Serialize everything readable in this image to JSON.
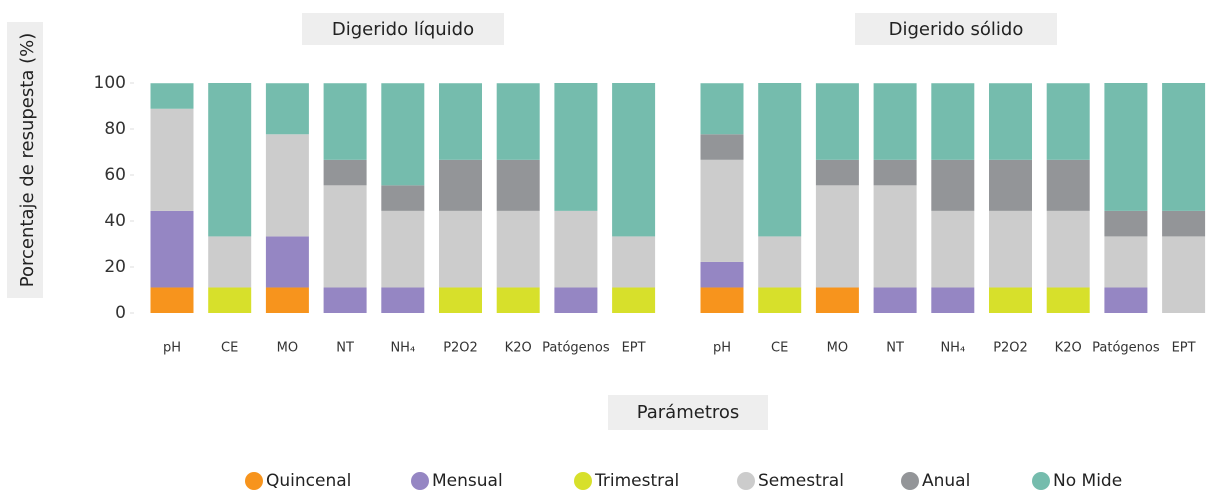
{
  "y_label": "Porcentaje de resupesta (%)",
  "x_label": "Parámetros",
  "chart_data": [
    {
      "type": "bar",
      "stacked": true,
      "title": "Digerido líquido",
      "categories": [
        "pH",
        "CE",
        "MO",
        "NT",
        "NH₄",
        "P2O2",
        "K2O",
        "Patógenos",
        "EPT"
      ],
      "series": [
        {
          "name": "Quincenal",
          "color": "#f7941d",
          "values": [
            11.1,
            0,
            11.1,
            0,
            0,
            0,
            0,
            0,
            0
          ]
        },
        {
          "name": "Mensual",
          "color": "#9586c3",
          "values": [
            33.3,
            0,
            22.2,
            11.1,
            11.1,
            0,
            0,
            11.1,
            0
          ]
        },
        {
          "name": "Trimestral",
          "color": "#d7e02b",
          "values": [
            0,
            11.1,
            0,
            0,
            0,
            11.1,
            11.1,
            0,
            11.1
          ]
        },
        {
          "name": "Semestral",
          "color": "#cccccc",
          "values": [
            44.4,
            22.2,
            44.4,
            44.4,
            33.3,
            33.3,
            33.3,
            33.3,
            22.2
          ]
        },
        {
          "name": "Anual",
          "color": "#939598",
          "values": [
            0,
            0,
            0,
            11.1,
            11.1,
            22.2,
            22.2,
            0,
            0
          ]
        },
        {
          "name": "No Mide",
          "color": "#75bcad",
          "values": [
            11.1,
            66.7,
            22.2,
            33.3,
            44.4,
            33.3,
            33.3,
            55.6,
            66.7
          ]
        }
      ],
      "ylim": [
        0,
        100
      ],
      "yticks": [
        0,
        20,
        40,
        60,
        80,
        100
      ]
    },
    {
      "type": "bar",
      "stacked": true,
      "title": "Digerido sólido",
      "categories": [
        "pH",
        "CE",
        "MO",
        "NT",
        "NH₄",
        "P2O2",
        "K2O",
        "Patógenos",
        "EPT"
      ],
      "series": [
        {
          "name": "Quincenal",
          "color": "#f7941d",
          "values": [
            11.1,
            0,
            11.1,
            0,
            0,
            0,
            0,
            0,
            0
          ]
        },
        {
          "name": "Mensual",
          "color": "#9586c3",
          "values": [
            11.1,
            0,
            0,
            11.1,
            11.1,
            0,
            0,
            11.1,
            0
          ]
        },
        {
          "name": "Trimestral",
          "color": "#d7e02b",
          "values": [
            0,
            11.1,
            0,
            0,
            0,
            11.1,
            11.1,
            0,
            0
          ]
        },
        {
          "name": "Semestral",
          "color": "#cccccc",
          "values": [
            44.4,
            22.2,
            44.4,
            44.4,
            33.3,
            33.3,
            33.3,
            22.2,
            33.3
          ]
        },
        {
          "name": "Anual",
          "color": "#939598",
          "values": [
            11.1,
            0,
            11.1,
            11.1,
            22.2,
            22.2,
            22.2,
            11.1,
            11.1
          ]
        },
        {
          "name": "No Mide",
          "color": "#75bcad",
          "values": [
            22.2,
            66.7,
            33.3,
            33.3,
            33.3,
            33.3,
            33.3,
            55.6,
            55.6
          ]
        }
      ],
      "ylim": [
        0,
        100
      ]
    }
  ]
}
